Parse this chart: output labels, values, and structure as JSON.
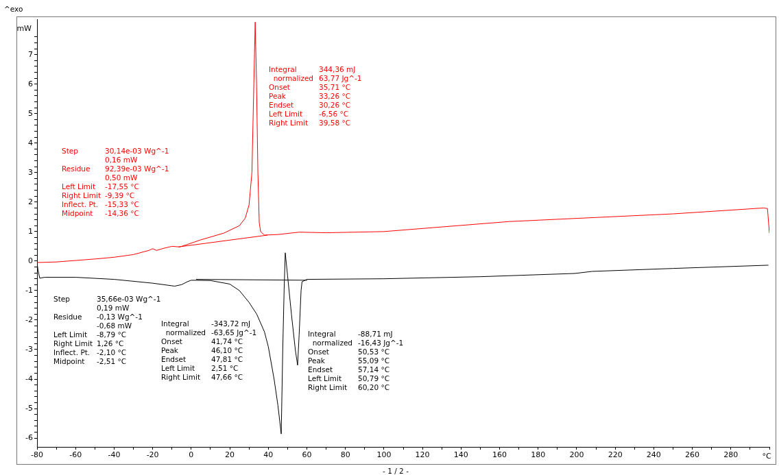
{
  "chart_data": {
    "type": "line",
    "ylabel": "mW",
    "xlabel": "°C",
    "xlim": [
      -80,
      300
    ],
    "ylim": [
      -6.3,
      8.2
    ],
    "xticks": [
      -80,
      {
        "value": -70,
        "label": null
      },
      -60,
      {
        "value": -50,
        "label": null
      },
      -40,
      {
        "value": -30,
        "label": null
      },
      -20,
      {
        "value": -10,
        "label": null
      },
      0,
      {
        "value": 10,
        "label": null
      },
      20,
      {
        "value": 30,
        "label": null
      },
      40,
      {
        "value": 50,
        "label": null
      },
      60,
      {
        "value": 70,
        "label": null
      },
      80,
      {
        "value": 90,
        "label": null
      },
      100,
      {
        "value": 110,
        "label": null
      },
      120,
      {
        "value": 130,
        "label": null
      },
      140,
      {
        "value": 150,
        "label": null
      },
      160,
      {
        "value": 170,
        "label": null
      },
      180,
      {
        "value": 190,
        "label": null
      },
      200,
      {
        "value": 210,
        "label": null
      },
      220,
      {
        "value": 230,
        "label": null
      },
      240,
      {
        "value": 250,
        "label": null
      },
      260,
      {
        "value": 270,
        "label": null
      },
      280,
      {
        "value": 290,
        "label": null
      },
      {
        "value": 300,
        "label": null
      }
    ],
    "yticks": [
      -6,
      {
        "value": -5.8,
        "label": null
      },
      {
        "value": -5.6,
        "label": null
      },
      {
        "value": -5.4,
        "label": null
      },
      {
        "value": -5.2,
        "label": null
      },
      -5,
      {
        "value": -4.8,
        "label": null
      },
      {
        "value": -4.6,
        "label": null
      },
      {
        "value": -4.4,
        "label": null
      },
      {
        "value": -4.2,
        "label": null
      },
      -4,
      {
        "value": -3.8,
        "label": null
      },
      {
        "value": -3.6,
        "label": null
      },
      {
        "value": -3.4,
        "label": null
      },
      {
        "value": -3.2,
        "label": null
      },
      -3,
      {
        "value": -2.8,
        "label": null
      },
      {
        "value": -2.6,
        "label": null
      },
      {
        "value": -2.4,
        "label": null
      },
      {
        "value": -2.2,
        "label": null
      },
      -2,
      {
        "value": -1.8,
        "label": null
      },
      {
        "value": -1.6,
        "label": null
      },
      {
        "value": -1.4,
        "label": null
      },
      {
        "value": -1.2,
        "label": null
      },
      -1,
      {
        "value": -0.8,
        "label": null
      },
      {
        "value": -0.6,
        "label": null
      },
      {
        "value": -0.4,
        "label": null
      },
      {
        "value": -0.2,
        "label": null
      },
      0,
      {
        "value": 0.2,
        "label": null
      },
      {
        "value": 0.4,
        "label": null
      },
      {
        "value": 0.6,
        "label": null
      },
      {
        "value": 0.8,
        "label": null
      },
      1,
      {
        "value": 1.2,
        "label": null
      },
      {
        "value": 1.4,
        "label": null
      },
      {
        "value": 1.6,
        "label": null
      },
      {
        "value": 1.8,
        "label": null
      },
      2,
      {
        "value": 2.2,
        "label": null
      },
      {
        "value": 2.4,
        "label": null
      },
      {
        "value": 2.6,
        "label": null
      },
      {
        "value": 2.8,
        "label": null
      },
      3,
      {
        "value": 3.2,
        "label": null
      },
      {
        "value": 3.4,
        "label": null
      },
      {
        "value": 3.6,
        "label": null
      },
      {
        "value": 3.8,
        "label": null
      },
      4,
      {
        "value": 4.2,
        "label": null
      },
      {
        "value": 4.4,
        "label": null
      },
      {
        "value": 4.6,
        "label": null
      },
      {
        "value": 4.8,
        "label": null
      },
      5,
      {
        "value": 5.2,
        "label": null
      },
      {
        "value": 5.4,
        "label": null
      },
      {
        "value": 5.6,
        "label": null
      },
      {
        "value": 5.8,
        "label": null
      },
      6,
      {
        "value": 6.2,
        "label": null
      },
      {
        "value": 6.4,
        "label": null
      },
      {
        "value": 6.6,
        "label": null
      },
      {
        "value": 6.8,
        "label": null
      },
      7,
      {
        "value": 7.2,
        "label": null
      },
      {
        "value": 7.4,
        "label": null
      },
      {
        "value": 7.6,
        "label": null
      }
    ],
    "grid": false,
    "legend": false,
    "marker": "none",
    "line_style": "solid",
    "series": [
      {
        "color": "#ff0000",
        "x": [
          -80,
          -70,
          -60,
          -50,
          -40,
          -30,
          -22,
          -20,
          -18,
          -15,
          -10,
          -6,
          -3.5,
          5,
          17,
          25,
          28,
          30,
          31.5,
          32.5,
          33.2,
          33.9,
          34.6,
          35.3,
          36,
          38,
          45,
          56,
          70,
          100,
          165,
          250,
          297,
          299,
          300
        ],
        "values": [
          -0.05,
          -0.03,
          0.02,
          0.07,
          0.13,
          0.22,
          0.36,
          0.42,
          0.36,
          0.42,
          0.5,
          0.48,
          0.53,
          0.72,
          0.95,
          1.2,
          1.45,
          1.9,
          3,
          6,
          8.1,
          6,
          3,
          1.3,
          1.0,
          0.88,
          0.9,
          0.98,
          0.96,
          1.0,
          1.34,
          1.6,
          1.8,
          1.78,
          0.95
        ]
      },
      {
        "color": "#ff0000",
        "x": [
          -6.56,
          39.58
        ],
        "values": [
          0.48,
          0.88
        ]
      },
      {
        "color": "#000000",
        "x": [
          -80,
          -79.5,
          -78.6,
          -76,
          -60,
          -40,
          -20,
          -8.6,
          -5,
          -2,
          0,
          10,
          20,
          25,
          30,
          34,
          38,
          40,
          43,
          45,
          46.7,
          47.5,
          48.2,
          48.8,
          50,
          52,
          54,
          55.2,
          56,
          57,
          57.5,
          60,
          100,
          150,
          199,
          208,
          250,
          299.5
        ],
        "values": [
          -0.05,
          -0.3,
          -0.58,
          -0.55,
          -0.55,
          -0.62,
          -0.75,
          -0.85,
          -0.8,
          -0.7,
          -0.65,
          -0.66,
          -0.78,
          -1.0,
          -1.4,
          -1.8,
          -2.4,
          -2.9,
          -4.0,
          -4.9,
          -5.86,
          -3,
          -1,
          0.28,
          -0.5,
          -1.8,
          -3.0,
          -3.53,
          -2.5,
          -1.0,
          -0.7,
          -0.62,
          -0.6,
          -0.53,
          -0.42,
          -0.35,
          -0.25,
          -0.14
        ]
      },
      {
        "color": "#000000",
        "x": [
          2.51,
          60.2
        ],
        "values": [
          -0.62,
          -0.65
        ]
      }
    ],
    "annotations": [
      "^exo",
      "Integral\t344,36 mJ\n  normalized\t63,77 Jg^-1\nOnset\t35,71 °C\nPeak\t33,26 °C\nEndset\t30,26 °C\nLeft Limit\t-6,56 °C\nRight Limit\t39,58 °C",
      "Step\t30,14e-03 Wg^-1\n\t0,16 mW\nResidue\t92,39e-03 Wg^-1\n\t0,50 mW\nLeft Limit\t-17,55 °C\nRight Limit\t-9,39 °C\nInflect. Pt.\t-15,33 °C\nMidpoint\t-14,36 °C",
      "Step\t35,66e-03 Wg^-1\n\t0,19 mW\nResidue\t-0,13 Wg^-1\n\t-0,68 mW\nLeft Limit\t-8,79 °C\nRight Limit\t1,26 °C\nInflect. Pt.\t-2,10 °C\nMidpoint\t-2,51 °C",
      "Integral\t-343,72 mJ\n  normalized\t-63,65 Jg^-1\nOnset\t41,74 °C\nPeak\t46,10 °C\nEndset\t47,81 °C\nLeft Limit\t2,51 °C\nRight Limit\t47,66 °C",
      "Integral\t-88,71 mJ\n  normalized\t-16,43 Jg^-1\nOnset\t50,53 °C\nPeak\t55,09 °C\nEndset\t57,14 °C\nLeft Limit\t50,79 °C\nRight Limit\t60,20 °C",
      "- 1 / 2 -"
    ]
  }
}
